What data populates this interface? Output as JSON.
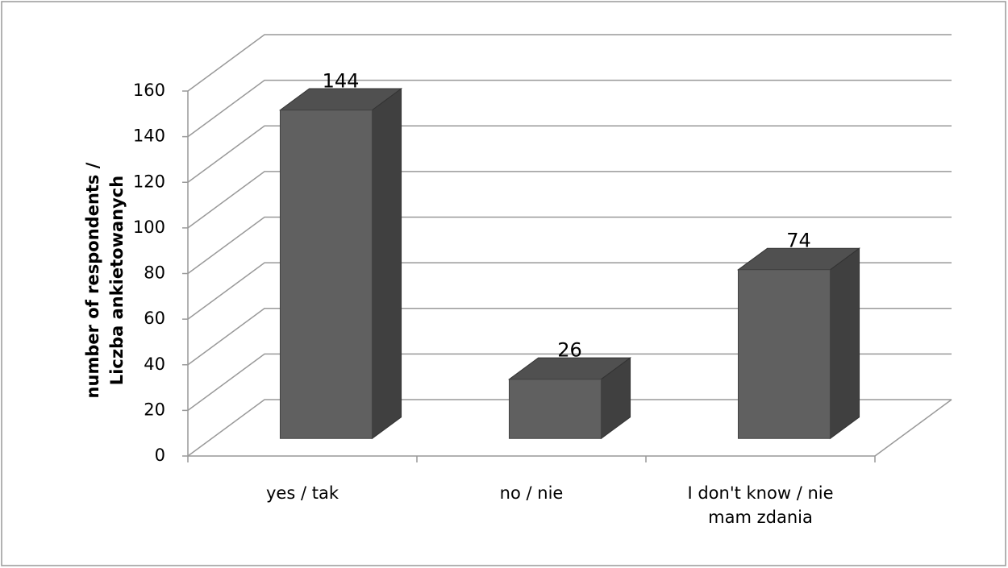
{
  "chart_data": {
    "type": "bar3d",
    "y_label": "number of respondents / Liczba ankietowanych",
    "categories": [
      "yes / tak",
      "no / nie",
      "I don't know / nie mam zdania"
    ],
    "values": [
      144,
      26,
      74
    ],
    "color": "#606060",
    "ylim": [
      0,
      160
    ],
    "yticks": [
      0,
      20,
      40,
      60,
      80,
      100,
      120,
      140,
      160
    ],
    "grid": true
  }
}
